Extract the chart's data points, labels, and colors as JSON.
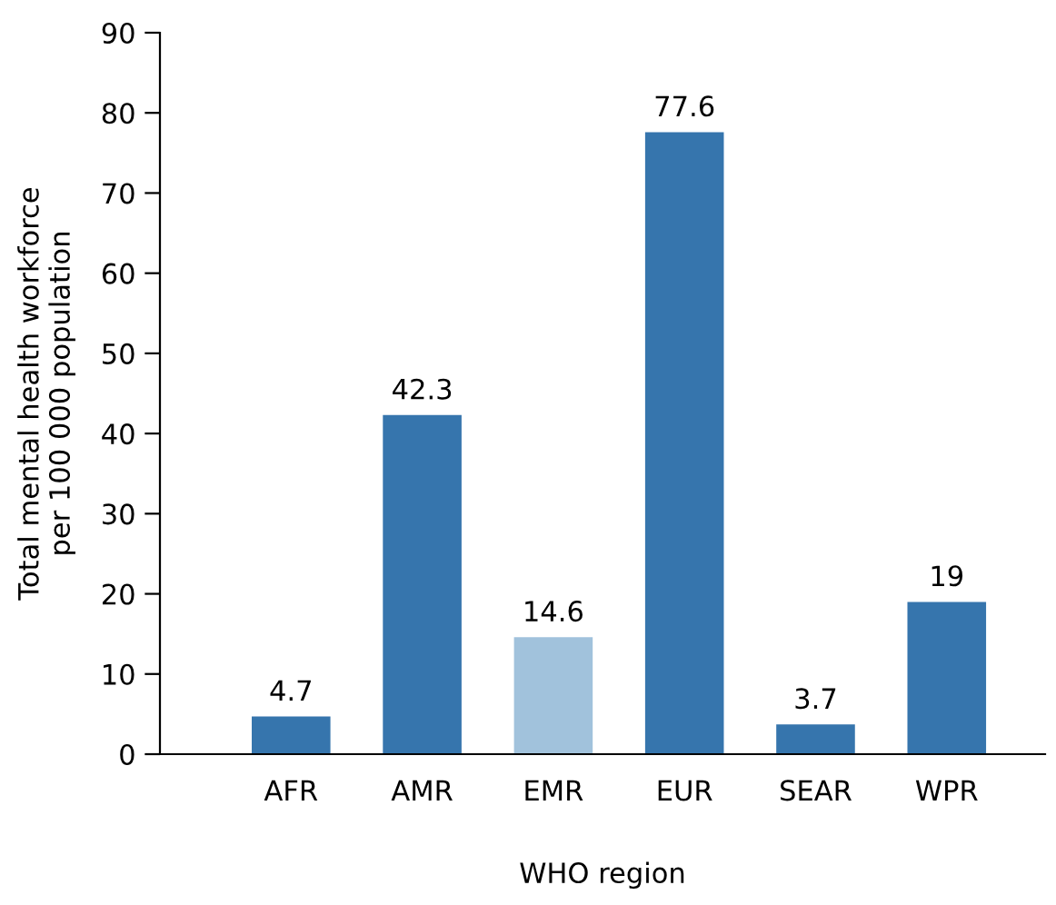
{
  "chart_data": {
    "type": "bar",
    "xlabel": "WHO region",
    "ylabel": "Total mental health workforce\nper 100 000 population",
    "categories": [
      "AFR",
      "AMR",
      "EMR",
      "EUR",
      "SEAR",
      "WPR"
    ],
    "values": [
      4.7,
      42.3,
      14.6,
      77.6,
      3.7,
      19
    ],
    "colors": [
      "#3675ad",
      "#3675ad",
      "#a1c2dc",
      "#3675ad",
      "#3675ad",
      "#3675ad"
    ],
    "ylim": [
      0,
      90
    ],
    "yticks": [
      0,
      10,
      20,
      30,
      40,
      50,
      60,
      70,
      80,
      90
    ],
    "data_labels": true,
    "grid": false,
    "legend": false
  }
}
